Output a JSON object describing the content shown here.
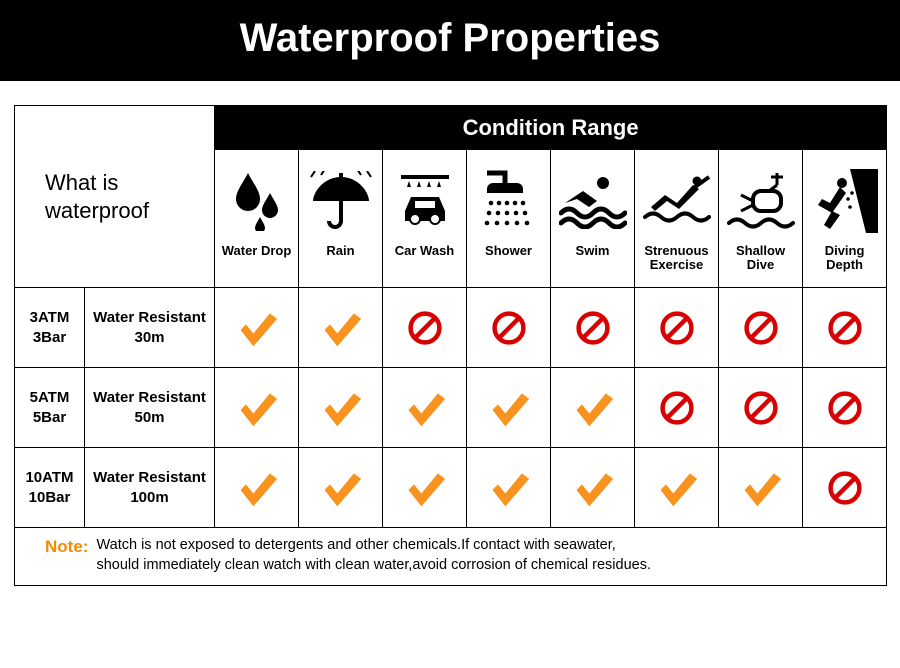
{
  "title": "Waterproof Properties",
  "corner_label": "What is\nwaterproof",
  "condition_header": "Condition Range",
  "colors": {
    "header_bg": "#000000",
    "header_fg": "#ffffff",
    "border": "#000000",
    "check": "#f7931e",
    "no": "#d80000",
    "note_label": "#f28c00",
    "text": "#000000",
    "bg": "#ffffff"
  },
  "conditions": [
    {
      "key": "water_drop",
      "label": "Water Drop",
      "icon": "drops"
    },
    {
      "key": "rain",
      "label": "Rain",
      "icon": "umbrella"
    },
    {
      "key": "car_wash",
      "label": "Car Wash",
      "icon": "carwash"
    },
    {
      "key": "shower",
      "label": "Shower",
      "icon": "shower"
    },
    {
      "key": "swim",
      "label": "Swim",
      "icon": "swim"
    },
    {
      "key": "strenuous",
      "label": "Strenuous Exercise",
      "icon": "strenuous"
    },
    {
      "key": "shallow_dive",
      "label": "Shallow Dive",
      "icon": "shallowdive"
    },
    {
      "key": "diving_depth",
      "label": "Diving Depth",
      "icon": "divingdepth"
    }
  ],
  "rows": [
    {
      "atm": "3ATM\n3Bar",
      "desc": "Water Resistant\n30m",
      "values": [
        true,
        true,
        false,
        false,
        false,
        false,
        false,
        false
      ]
    },
    {
      "atm": "5ATM\n5Bar",
      "desc": "Water Resistant\n50m",
      "values": [
        true,
        true,
        true,
        true,
        true,
        false,
        false,
        false
      ]
    },
    {
      "atm": "10ATM\n10Bar",
      "desc": "Water Resistant\n100m",
      "values": [
        true,
        true,
        true,
        true,
        true,
        true,
        true,
        false
      ]
    }
  ],
  "note_label": "Note:",
  "note_text": "Watch is not exposed to detergents and other chemicals.If contact with seawater,\nshould immediately clean watch with clean water,avoid corrosion of chemical residues."
}
